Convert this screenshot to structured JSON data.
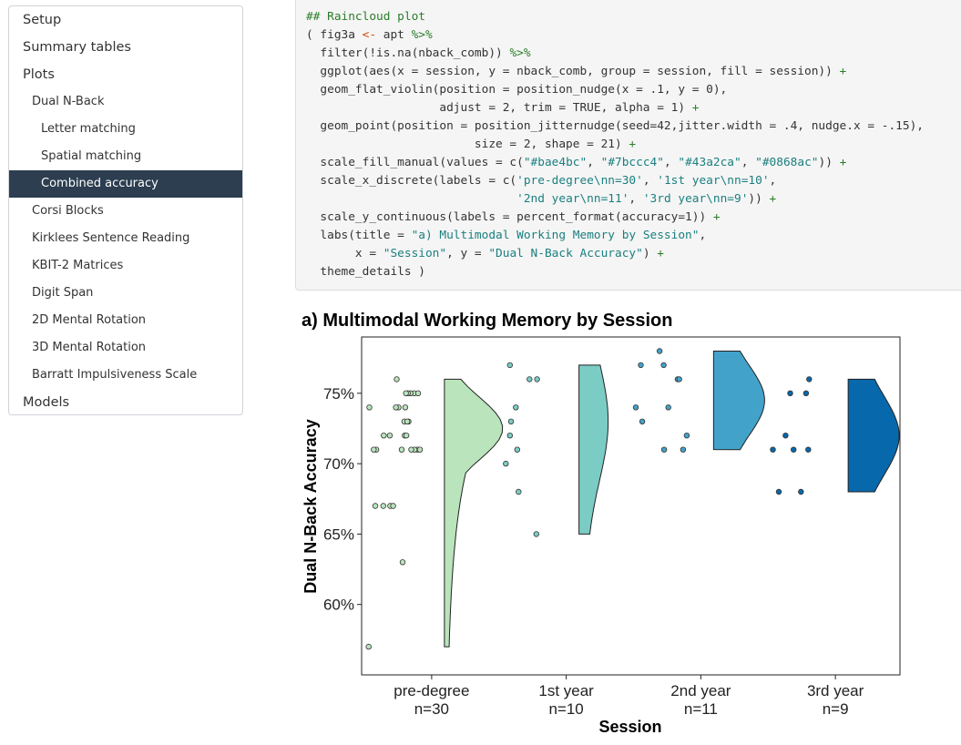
{
  "toc": {
    "items": [
      {
        "label": "Setup",
        "level": 1,
        "active": false
      },
      {
        "label": "Summary tables",
        "level": 1,
        "active": false
      },
      {
        "label": "Plots",
        "level": 1,
        "active": false
      },
      {
        "label": "Dual N-Back",
        "level": 2,
        "active": false
      },
      {
        "label": "Letter matching",
        "level": 3,
        "active": false
      },
      {
        "label": "Spatial matching",
        "level": 3,
        "active": false
      },
      {
        "label": "Combined accuracy",
        "level": 3,
        "active": true
      },
      {
        "label": "Corsi Blocks",
        "level": 2,
        "active": false
      },
      {
        "label": "Kirklees Sentence Reading",
        "level": 2,
        "active": false
      },
      {
        "label": "KBIT-2 Matrices",
        "level": 2,
        "active": false
      },
      {
        "label": "Digit Span",
        "level": 2,
        "active": false
      },
      {
        "label": "2D Mental Rotation",
        "level": 2,
        "active": false
      },
      {
        "label": "3D Mental Rotation",
        "level": 2,
        "active": false
      },
      {
        "label": "Barratt Impulsiveness Scale",
        "level": 2,
        "active": false
      },
      {
        "label": "Models",
        "level": 1,
        "active": false
      }
    ]
  },
  "code": {
    "lines": [
      [
        {
          "t": "## Raincloud plot",
          "c": "comment"
        }
      ],
      [
        {
          "t": "( fig3a ",
          "c": ""
        },
        {
          "t": "<-",
          "c": "op"
        },
        {
          "t": " apt ",
          "c": ""
        },
        {
          "t": "%>%",
          "c": "pipe"
        }
      ],
      [
        {
          "t": "  filter(!is.na(nback_comb)) ",
          "c": ""
        },
        {
          "t": "%>%",
          "c": "pipe"
        }
      ],
      [
        {
          "t": "  ggplot(aes(x = session, y = nback_comb, group = session, fill = session)) ",
          "c": ""
        },
        {
          "t": "+",
          "c": "plus"
        }
      ],
      [
        {
          "t": "  geom_flat_violin(position = position_nudge(x = .1, y = 0),",
          "c": ""
        }
      ],
      [
        {
          "t": "                   adjust = 2, trim = TRUE, alpha = 1) ",
          "c": ""
        },
        {
          "t": "+",
          "c": "plus"
        }
      ],
      [
        {
          "t": "  geom_point(position = position_jitternudge(seed=42,jitter.width = .4, nudge.x = -.15),",
          "c": ""
        }
      ],
      [
        {
          "t": "                        size = 2, shape = 21) ",
          "c": ""
        },
        {
          "t": "+",
          "c": "plus"
        }
      ],
      [
        {
          "t": "  scale_fill_manual(values = c(",
          "c": ""
        },
        {
          "t": "\"#bae4bc\"",
          "c": "str"
        },
        {
          "t": ", ",
          "c": ""
        },
        {
          "t": "\"#7bccc4\"",
          "c": "str"
        },
        {
          "t": ", ",
          "c": ""
        },
        {
          "t": "\"#43a2ca\"",
          "c": "str"
        },
        {
          "t": ", ",
          "c": ""
        },
        {
          "t": "\"#0868ac\"",
          "c": "str"
        },
        {
          "t": ")) ",
          "c": ""
        },
        {
          "t": "+",
          "c": "plus"
        }
      ],
      [
        {
          "t": "  scale_x_discrete(labels = c(",
          "c": ""
        },
        {
          "t": "'pre-degree\\nn=30'",
          "c": "str"
        },
        {
          "t": ", ",
          "c": ""
        },
        {
          "t": "'1st year\\nn=10'",
          "c": "str"
        },
        {
          "t": ",",
          "c": ""
        }
      ],
      [
        {
          "t": "                              ",
          "c": ""
        },
        {
          "t": "'2nd year\\nn=11'",
          "c": "str"
        },
        {
          "t": ", ",
          "c": ""
        },
        {
          "t": "'3rd year\\nn=9'",
          "c": "str"
        },
        {
          "t": ")) ",
          "c": ""
        },
        {
          "t": "+",
          "c": "plus"
        }
      ],
      [
        {
          "t": "  scale_y_continuous(labels = percent_format(accuracy=1)) ",
          "c": ""
        },
        {
          "t": "+",
          "c": "plus"
        }
      ],
      [
        {
          "t": "  labs(title = ",
          "c": ""
        },
        {
          "t": "\"a) Multimodal Working Memory by Session\"",
          "c": "str"
        },
        {
          "t": ",",
          "c": ""
        }
      ],
      [
        {
          "t": "       x = ",
          "c": ""
        },
        {
          "t": "\"Session\"",
          "c": "str"
        },
        {
          "t": ", y = ",
          "c": ""
        },
        {
          "t": "\"Dual N-Back Accuracy\"",
          "c": "str"
        },
        {
          "t": ") ",
          "c": ""
        },
        {
          "t": "+",
          "c": "plus"
        }
      ],
      [
        {
          "t": "  theme_details )",
          "c": ""
        }
      ]
    ]
  },
  "chart_data": {
    "type": "raincloud",
    "title": "a) Multimodal Working Memory by Session",
    "xlabel": "Session",
    "ylabel": "Dual N-Back Accuracy",
    "ylim": [
      0.55,
      0.79
    ],
    "yticks": [
      0.6,
      0.65,
      0.7,
      0.75
    ],
    "ytick_labels": [
      "60%",
      "65%",
      "70%",
      "75%"
    ],
    "categories": [
      {
        "line1": "pre-degree",
        "line2": "n=30",
        "color": "#bae4bc",
        "violin_range": [
          0.57,
          0.76
        ],
        "peak": 0.725,
        "points": [
          0.75,
          0.75,
          0.75,
          0.75,
          0.76,
          0.74,
          0.74,
          0.74,
          0.73,
          0.73,
          0.72,
          0.72,
          0.72,
          0.71,
          0.71,
          0.71,
          0.71,
          0.71,
          0.71,
          0.71,
          0.67,
          0.67,
          0.67,
          0.67,
          0.63,
          0.57,
          0.74,
          0.73,
          0.72,
          0.75
        ]
      },
      {
        "line1": "1st year",
        "line2": "n=10",
        "color": "#7bccc4",
        "violin_range": [
          0.65,
          0.77
        ],
        "peak": 0.73,
        "points": [
          0.77,
          0.76,
          0.76,
          0.74,
          0.73,
          0.72,
          0.71,
          0.7,
          0.68,
          0.65
        ]
      },
      {
        "line1": "2nd year",
        "line2": "n=11",
        "color": "#43a2ca",
        "violin_range": [
          0.71,
          0.78
        ],
        "peak": 0.745,
        "points": [
          0.78,
          0.77,
          0.77,
          0.76,
          0.76,
          0.74,
          0.74,
          0.73,
          0.72,
          0.71,
          0.71
        ]
      },
      {
        "line1": "3rd year",
        "line2": "n=9",
        "color": "#0868ac",
        "violin_range": [
          0.68,
          0.76
        ],
        "peak": 0.72,
        "points": [
          0.76,
          0.75,
          0.75,
          0.72,
          0.71,
          0.71,
          0.71,
          0.68,
          0.68
        ]
      }
    ]
  }
}
